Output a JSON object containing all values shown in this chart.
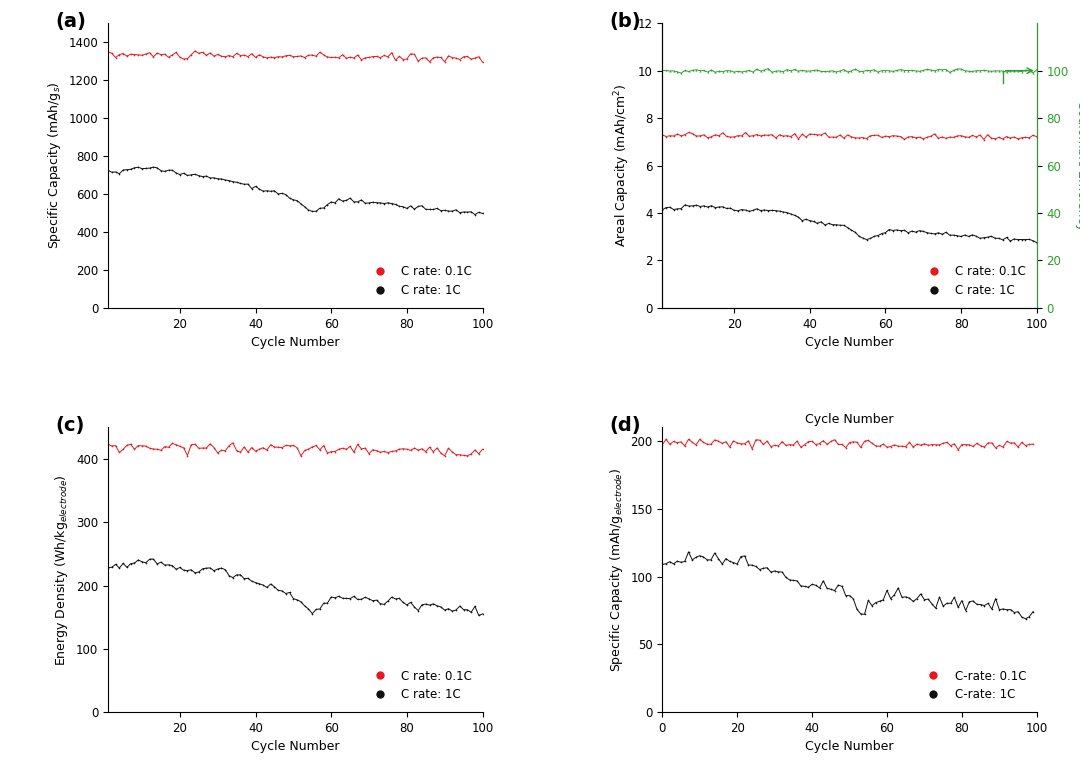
{
  "panel_labels": [
    "(a)",
    "(b)",
    "(c)",
    "(d)"
  ],
  "red_color": "#e8181c",
  "black_color": "#111111",
  "green_color": "#2ca02c",
  "background_color": "#ffffff",
  "seed": 42,
  "figsize": [
    10.8,
    7.74
  ],
  "dpi": 100
}
